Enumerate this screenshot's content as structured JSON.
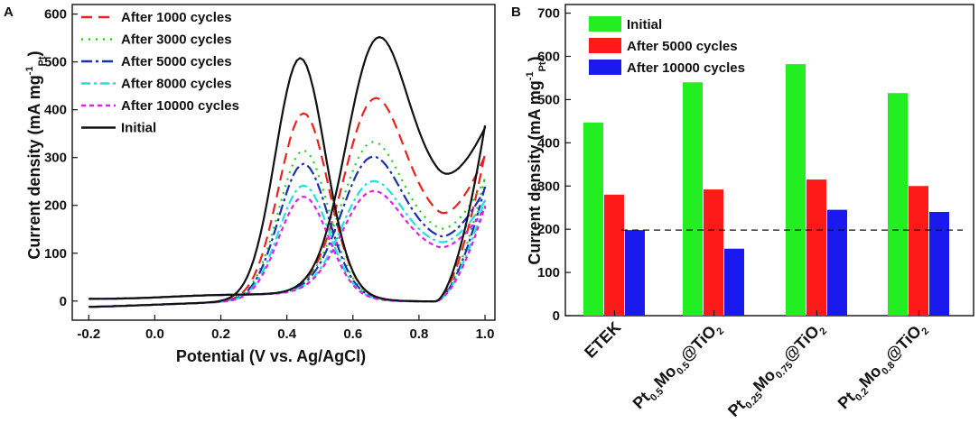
{
  "chart_data": [
    {
      "panel": "A",
      "type": "line",
      "xlabel": "Potential (V vs. Ag/AgCl)",
      "ylabel": "Current density (mA mg",
      "ylabel_sup": "-1",
      "ylabel_sub": "Pt",
      "ylabel_close": ")",
      "xlim": [
        -0.25,
        1.03
      ],
      "ylim": [
        -40,
        620
      ],
      "xticks": [
        -0.2,
        0.0,
        0.2,
        0.4,
        0.6,
        0.8,
        1.0
      ],
      "xtick_labels": [
        "-0.2",
        "0.0",
        "0.2",
        "0.4",
        "0.6",
        "0.8",
        "1.0"
      ],
      "yticks": [
        0,
        100,
        200,
        300,
        400,
        500,
        600
      ],
      "ytick_labels": [
        "0",
        "100",
        "200",
        "300",
        "400",
        "500",
        "600"
      ],
      "legend_position": "top-left",
      "series": [
        {
          "name": "After 1000 cycles",
          "color": "#e8231e",
          "dash": "12,7",
          "fp": 450,
          "bp": 395,
          "fpos": 0.66,
          "bpos": 0.45,
          "fmin": 170,
          "bbase": 72,
          "vend": 310
        },
        {
          "name": "After 3000 cycles",
          "color": "#22cc22",
          "dash": "2,6",
          "fp": 358,
          "bp": 318,
          "fpos": 0.65,
          "bpos": 0.45,
          "fmin": 145,
          "bbase": 62,
          "vend": 260
        },
        {
          "name": "After 5000 cycles",
          "color": "#1a2fb0",
          "dash": "12,4,3,4",
          "fp": 325,
          "bp": 290,
          "fpos": 0.65,
          "bpos": 0.45,
          "fmin": 130,
          "bbase": 58,
          "vend": 240
        },
        {
          "name": "After 8000 cycles",
          "color": "#1ee0e0",
          "dash": "10,4,3,4",
          "fp": 272,
          "bp": 245,
          "fpos": 0.65,
          "bpos": 0.45,
          "fmin": 120,
          "bbase": 52,
          "vend": 215
        },
        {
          "name": "After 10000 cycles",
          "color": "#e020e0",
          "dash": "5,4",
          "fp": 250,
          "bp": 222,
          "fpos": 0.65,
          "bpos": 0.45,
          "fmin": 110,
          "bbase": 48,
          "vend": 200
        },
        {
          "name": "Initial",
          "color": "#111111",
          "dash": "",
          "fp": 582,
          "bp": 510,
          "fpos": 0.67,
          "bpos": 0.44,
          "fmin": 245,
          "bbase": 95,
          "vend": 368
        }
      ]
    },
    {
      "panel": "B",
      "type": "bar",
      "ylabel": "Current density (mA mg",
      "ylabel_sup": "-1",
      "ylabel_sub": "Pt",
      "ylabel_close": ")",
      "ylim": [
        0,
        720
      ],
      "yticks": [
        0,
        100,
        200,
        300,
        400,
        500,
        600,
        700
      ],
      "ytick_labels": [
        "0",
        "100",
        "200",
        "300",
        "400",
        "500",
        "600",
        "700"
      ],
      "legend_position": "top-left",
      "reference_line": 198,
      "categories": [
        {
          "parts": [
            {
              "t": "ETEK"
            }
          ]
        },
        {
          "parts": [
            {
              "t": "Pt"
            },
            {
              "t": "0.5",
              "sub": true
            },
            {
              "t": "Mo"
            },
            {
              "t": "0.5",
              "sub": true
            },
            {
              "t": "@TiO"
            },
            {
              "t": "2",
              "sub": true
            }
          ]
        },
        {
          "parts": [
            {
              "t": "Pt"
            },
            {
              "t": "0.25",
              "sub": true
            },
            {
              "t": "Mo"
            },
            {
              "t": "0.75",
              "sub": true
            },
            {
              "t": "@TiO"
            },
            {
              "t": "2",
              "sub": true
            }
          ]
        },
        {
          "parts": [
            {
              "t": "Pt"
            },
            {
              "t": "0.2",
              "sub": true
            },
            {
              "t": "Mo"
            },
            {
              "t": "0.8",
              "sub": true
            },
            {
              "t": "@TiO"
            },
            {
              "t": "2",
              "sub": true
            }
          ]
        }
      ],
      "series": [
        {
          "name": "Initial",
          "color": "#22ee22",
          "values": [
            447,
            540,
            582,
            515
          ]
        },
        {
          "name": "After 5000 cycles",
          "color": "#ff1a1a",
          "values": [
            280,
            292,
            315,
            300
          ]
        },
        {
          "name": "After 10000 cycles",
          "color": "#1a1aee",
          "values": [
            198,
            155,
            245,
            240
          ]
        }
      ]
    }
  ]
}
